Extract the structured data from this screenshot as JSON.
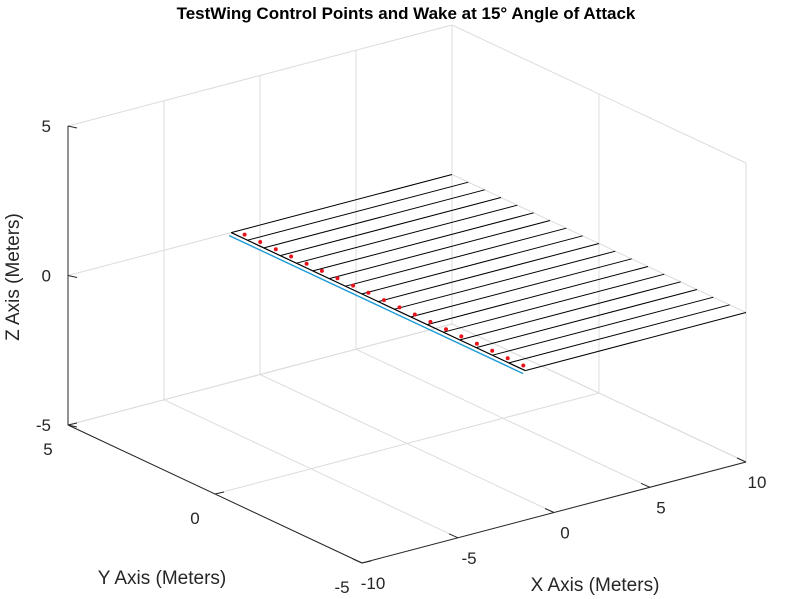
{
  "chart_data": {
    "type": "3d-line",
    "title": "TestWing Control Points and Wake at 15° Angle of Attack",
    "xlabel": "X Axis (Meters)",
    "ylabel": "Y Axis (Meters)",
    "zlabel": "Z Axis (Meters)",
    "xlim": [
      -10,
      10
    ],
    "ylim": [
      -5,
      5
    ],
    "zlim": [
      -5,
      5
    ],
    "xticks": [
      "-10",
      "-5",
      "0",
      "5",
      "10"
    ],
    "yticks": [
      "-5",
      "0",
      "5"
    ],
    "zticks": [
      "-5",
      "0",
      "5"
    ],
    "grid": true,
    "wing": {
      "leading_edge_x": -1.5,
      "y_span": [
        -5,
        5
      ],
      "z": 0,
      "wake_end_x": 10,
      "num_wake_lines": 19,
      "colors": {
        "leading_edge": "#1f9bd6",
        "wake": "#000000",
        "control_points": "#e8141c"
      }
    },
    "control_points": {
      "x": -1.2,
      "z": 0,
      "y": [
        -4.74,
        -4.21,
        -3.68,
        -3.16,
        -2.63,
        -2.11,
        -1.58,
        -1.05,
        -0.53,
        0,
        0.53,
        1.05,
        1.58,
        2.11,
        2.63,
        3.16,
        3.68,
        4.21,
        4.74
      ]
    }
  }
}
